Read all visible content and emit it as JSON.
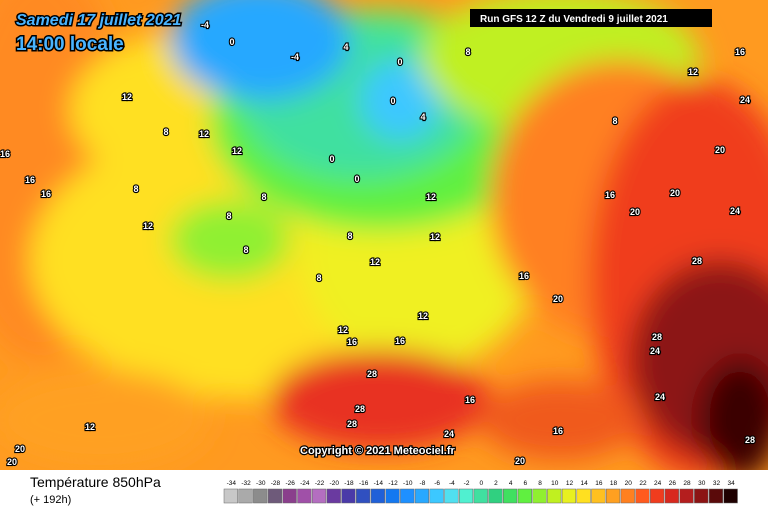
{
  "header": {
    "date": "Samedi 17 juillet 2021",
    "time": "14:00 locale",
    "run": "Run GFS 12 Z du Vendredi 9 juillet 2021"
  },
  "copyright": "Copyright © 2021 Meteociel.fr",
  "legend": {
    "title": "Température 850hPa",
    "lead": "(+ 192h)",
    "values": [
      -34,
      -32,
      -30,
      -28,
      -26,
      -24,
      -22,
      -20,
      -18,
      -16,
      -14,
      -12,
      -10,
      -8,
      -6,
      -4,
      -2,
      0,
      2,
      4,
      6,
      8,
      10,
      12,
      14,
      16,
      18,
      20,
      22,
      24,
      26,
      28,
      30,
      32,
      34
    ],
    "colors": [
      "#c8c8c8",
      "#aaaaaa",
      "#8c8c8c",
      "#6e5a7a",
      "#8a3f8c",
      "#a050a8",
      "#b46ec0",
      "#6a3aa0",
      "#4a3aa8",
      "#3050c0",
      "#2060d8",
      "#1478f0",
      "#1e90ff",
      "#28a8ff",
      "#3cc8ff",
      "#50e0f0",
      "#50f0d0",
      "#40e0a0",
      "#30d080",
      "#40e060",
      "#60f040",
      "#90f030",
      "#c0f020",
      "#e8f020",
      "#ffe020",
      "#ffc020",
      "#ffa020",
      "#ff8020",
      "#ff5a1e",
      "#f03c1e",
      "#d8281e",
      "#b41e1e",
      "#8c1414",
      "#5a0a0a",
      "#1e0000"
    ]
  },
  "contour_labels": [
    12,
    8,
    12,
    12,
    16,
    16,
    16,
    8,
    12,
    8,
    8,
    8,
    8,
    8,
    12,
    12,
    12,
    12,
    12,
    16,
    16,
    16,
    20,
    16,
    20,
    20,
    24,
    20,
    28,
    28,
    24,
    24,
    28,
    28,
    28,
    24,
    16,
    20,
    16,
    28,
    12,
    20,
    20,
    -4,
    0,
    -4,
    4,
    0,
    0,
    4,
    0,
    0,
    8,
    12,
    24,
    16,
    8
  ]
}
